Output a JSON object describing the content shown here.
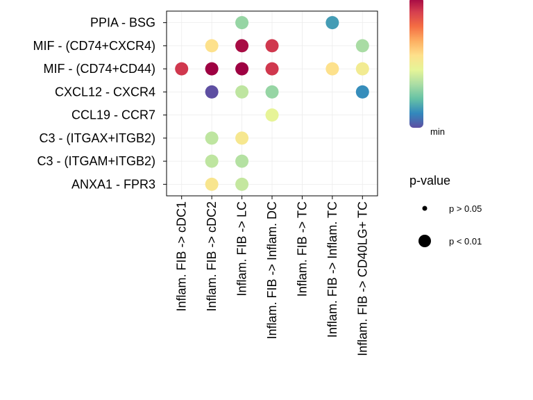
{
  "chart_data": {
    "type": "dot",
    "title": "",
    "xlabel": "",
    "ylabel": "",
    "x_categories": [
      "Inflam. FIB -> cDC1",
      "Inflam. FIB -> cDC2",
      "Inflam. FIB -> LC",
      "Inflam. FIB -> Inflam. DC",
      "Inflam. FIB -> TC",
      "Inflam. FIB -> Inflam. TC",
      "Inflam. FIB -> CD40LG+ TC"
    ],
    "y_categories": [
      "PPIA - BSG",
      "MIF - (CD74+CXCR4)",
      "MIF - (CD74+CD44)",
      "CXCL12 - CXCR4",
      "CCL19 - CCR7",
      "C3 - (ITGAX+ITGB2)",
      "C3 - (ITGAM+ITGB2)",
      "ANXA1 - FPR3"
    ],
    "points": [
      {
        "x": "Inflam. FIB -> LC",
        "y": "PPIA - BSG",
        "prob": 0.3,
        "pvalue": "p < 0.01"
      },
      {
        "x": "Inflam. FIB -> Inflam. TC",
        "y": "PPIA - BSG",
        "prob": 0.15,
        "pvalue": "p < 0.01"
      },
      {
        "x": "Inflam. FIB -> cDC2",
        "y": "MIF - (CD74+CXCR4)",
        "prob": 0.55,
        "pvalue": "p < 0.01"
      },
      {
        "x": "Inflam. FIB -> LC",
        "y": "MIF - (CD74+CXCR4)",
        "prob": 0.98,
        "pvalue": "p < 0.01"
      },
      {
        "x": "Inflam. FIB -> Inflam. DC",
        "y": "MIF - (CD74+CXCR4)",
        "prob": 0.9,
        "pvalue": "p < 0.01"
      },
      {
        "x": "Inflam. FIB -> CD40LG+ TC",
        "y": "MIF - (CD74+CXCR4)",
        "prob": 0.33,
        "pvalue": "p < 0.01"
      },
      {
        "x": "Inflam. FIB -> cDC1",
        "y": "MIF - (CD74+CD44)",
        "prob": 0.9,
        "pvalue": "p < 0.01"
      },
      {
        "x": "Inflam. FIB -> cDC2",
        "y": "MIF - (CD74+CD44)",
        "prob": 1.0,
        "pvalue": "p < 0.01"
      },
      {
        "x": "Inflam. FIB -> LC",
        "y": "MIF - (CD74+CD44)",
        "prob": 1.0,
        "pvalue": "p < 0.01"
      },
      {
        "x": "Inflam. FIB -> Inflam. DC",
        "y": "MIF - (CD74+CD44)",
        "prob": 0.9,
        "pvalue": "p < 0.01"
      },
      {
        "x": "Inflam. FIB -> Inflam. TC",
        "y": "MIF - (CD74+CD44)",
        "prob": 0.55,
        "pvalue": "p < 0.01"
      },
      {
        "x": "Inflam. FIB -> CD40LG+ TC",
        "y": "MIF - (CD74+CD44)",
        "prob": 0.5,
        "pvalue": "p < 0.01"
      },
      {
        "x": "Inflam. FIB -> cDC2",
        "y": "CXCL12 - CXCR4",
        "prob": 0.0,
        "pvalue": "p < 0.01"
      },
      {
        "x": "Inflam. FIB -> LC",
        "y": "CXCL12 - CXCR4",
        "prob": 0.37,
        "pvalue": "p < 0.01"
      },
      {
        "x": "Inflam. FIB -> Inflam. DC",
        "y": "CXCL12 - CXCR4",
        "prob": 0.3,
        "pvalue": "p < 0.01"
      },
      {
        "x": "Inflam. FIB -> CD40LG+ TC",
        "y": "CXCL12 - CXCR4",
        "prob": 0.12,
        "pvalue": "p < 0.01"
      },
      {
        "x": "Inflam. FIB -> Inflam. DC",
        "y": "CCL19 - CCR7",
        "prob": 0.45,
        "pvalue": "p < 0.01"
      },
      {
        "x": "Inflam. FIB -> cDC2",
        "y": "C3 - (ITGAX+ITGB2)",
        "prob": 0.37,
        "pvalue": "p < 0.01"
      },
      {
        "x": "Inflam. FIB -> LC",
        "y": "C3 - (ITGAX+ITGB2)",
        "prob": 0.52,
        "pvalue": "p < 0.01"
      },
      {
        "x": "Inflam. FIB -> cDC2",
        "y": "C3 - (ITGAM+ITGB2)",
        "prob": 0.37,
        "pvalue": "p < 0.01"
      },
      {
        "x": "Inflam. FIB -> LC",
        "y": "C3 - (ITGAM+ITGB2)",
        "prob": 0.35,
        "pvalue": "p < 0.01"
      },
      {
        "x": "Inflam. FIB -> cDC2",
        "y": "ANXA1 - FPR3",
        "prob": 0.53,
        "pvalue": "p < 0.01"
      },
      {
        "x": "Inflam. FIB -> LC",
        "y": "ANXA1 - FPR3",
        "prob": 0.38,
        "pvalue": "p < 0.01"
      }
    ],
    "color_scale": {
      "name": "Spectral",
      "stops": [
        "#5E4FA2",
        "#3288BD",
        "#66C2A5",
        "#ABDDA4",
        "#E6F598",
        "#FEE08B",
        "#FDAE61",
        "#F46D43",
        "#D53E4F",
        "#9E0142"
      ],
      "min_label": "min"
    },
    "size_legend": {
      "title": "p-value",
      "items": [
        {
          "label": "p > 0.05",
          "size": "small"
        },
        {
          "label": "p < 0.01",
          "size": "large"
        }
      ]
    },
    "grid": true
  }
}
